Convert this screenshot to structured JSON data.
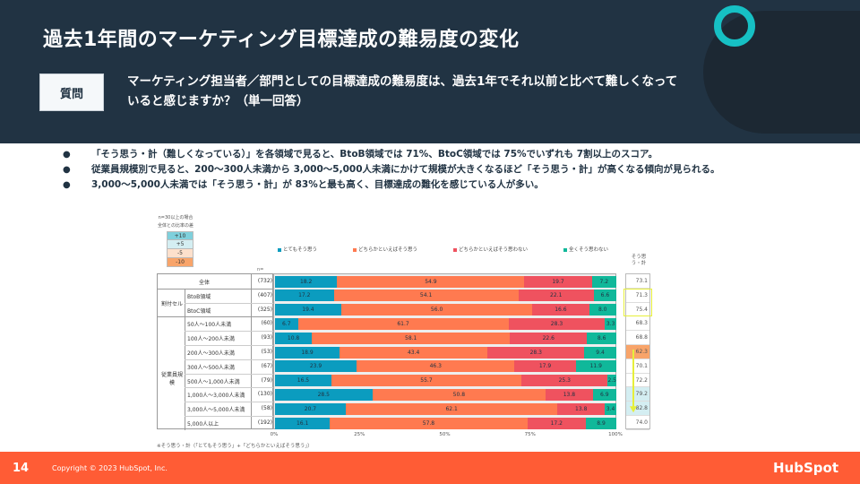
{
  "header": {
    "title": "過去1年間のマーケティング目標達成の難易度の変化",
    "question_badge": "質問",
    "question_text": "マーケティング担当者／部門としての目標達成の難易度は、過去1年でそれ以前と比べて難しくなっていると感じますか？（単一回答）"
  },
  "bullets": [
    "「そう思う・計（難しくなっている）」を各領域で見ると、BtoB領域では 71%、BtoC領域では 75%でいずれも 7割以上のスコア。",
    "従業員規模別で見ると、200〜300人未満から 3,000〜5,000人未満にかけて規模が大きくなるほど「そう思う・計」が高くなる傾向が見られる。",
    "3,000〜5,000人未満では「そう思う・計」が 83%と最も高く、目標達成の難化を感じている人が多い。"
  ],
  "bullet_glyph": "●",
  "chart_data": {
    "type": "bar",
    "orientation": "horizontal-stacked-100",
    "diff_legend": {
      "note_line1": "n=30以上の場合",
      "note_line2": "全体との比率の差",
      "levels": [
        {
          "label": "+10",
          "color": "#7fd0dc"
        },
        {
          "label": "+5",
          "color": "#d4eef2"
        },
        {
          "label": "-5",
          "color": "#fde0cc"
        },
        {
          "label": "-10",
          "color": "#f8a46a"
        }
      ]
    },
    "n_header": "n=",
    "series": [
      {
        "name": "とてもそう思う",
        "color": "#0b9cbf"
      },
      {
        "name": "どちらかといえばそう思う",
        "color": "#ff7a50"
      },
      {
        "name": "どちらかといえばそう思わない",
        "color": "#ef525f"
      },
      {
        "name": "全くそう思わない",
        "color": "#10b89a"
      }
    ],
    "groups": [
      {
        "label": "",
        "rows": [
          0
        ]
      },
      {
        "label": "割付セル",
        "rows": [
          1,
          2
        ]
      },
      {
        "label": "従業員規模",
        "rows": [
          3,
          4,
          5,
          6,
          7,
          8,
          9,
          10
        ]
      }
    ],
    "categories": [
      {
        "label": "全体",
        "n": "(732)",
        "values": [
          18.2,
          54.9,
          19.7,
          7.2
        ],
        "total": "73.1",
        "highlight": ""
      },
      {
        "label": "BtoB領域",
        "n": "(407)",
        "values": [
          17.2,
          54.1,
          22.1,
          6.6
        ],
        "total": "71.3",
        "highlight": ""
      },
      {
        "label": "BtoC領域",
        "n": "(325)",
        "values": [
          19.4,
          56.0,
          16.6,
          8.0
        ],
        "total": "75.4",
        "highlight": ""
      },
      {
        "label": "50人～100人未満",
        "n": "(60)",
        "values": [
          6.7,
          61.7,
          28.3,
          3.3
        ],
        "total": "68.3",
        "highlight": ""
      },
      {
        "label": "100人～200人未満",
        "n": "(93)",
        "values": [
          10.8,
          58.1,
          22.6,
          8.6
        ],
        "total": "68.8",
        "highlight": ""
      },
      {
        "label": "200人～300人未満",
        "n": "(53)",
        "values": [
          18.9,
          43.4,
          28.3,
          9.4
        ],
        "total": "62.3",
        "highlight": "-10"
      },
      {
        "label": "300人～500人未満",
        "n": "(67)",
        "values": [
          23.9,
          46.3,
          17.9,
          11.9
        ],
        "total": "70.1",
        "highlight": ""
      },
      {
        "label": "500人～1,000人未満",
        "n": "(79)",
        "values": [
          16.5,
          55.7,
          25.3,
          2.5
        ],
        "total": "72.2",
        "highlight": ""
      },
      {
        "label": "1,000人～3,000人未満",
        "n": "(130)",
        "values": [
          28.5,
          50.8,
          13.8,
          6.9
        ],
        "total": "79.2",
        "highlight": "+5"
      },
      {
        "label": "3,000人～5,000人未満",
        "n": "(58)",
        "values": [
          20.7,
          62.1,
          13.8,
          3.4
        ],
        "total": "82.8",
        "highlight": "+5"
      },
      {
        "label": "5,000人以上",
        "n": "(192)",
        "values": [
          16.1,
          57.8,
          17.2,
          8.9
        ],
        "total": "74.0",
        "highlight": ""
      }
    ],
    "x_ticks": [
      "0%",
      "25%",
      "50%",
      "75%",
      "100%"
    ],
    "xlim": [
      0,
      100
    ],
    "total_column_header": "そう思う・計",
    "footnote": "※そう思う・計（「とてもそう思う」+「どちらかといえばそう思う」）",
    "legend_position": "top"
  },
  "footer": {
    "page_number": "14",
    "copyright": "Copyright © 2023 HubSpot, Inc.",
    "brand": "HubSpot"
  },
  "colors": {
    "header_bg": "#213343",
    "accent_ring": "#16c0c4",
    "footer_bg": "#ff5c35",
    "highlight_yellow": "#e6ef3a"
  }
}
